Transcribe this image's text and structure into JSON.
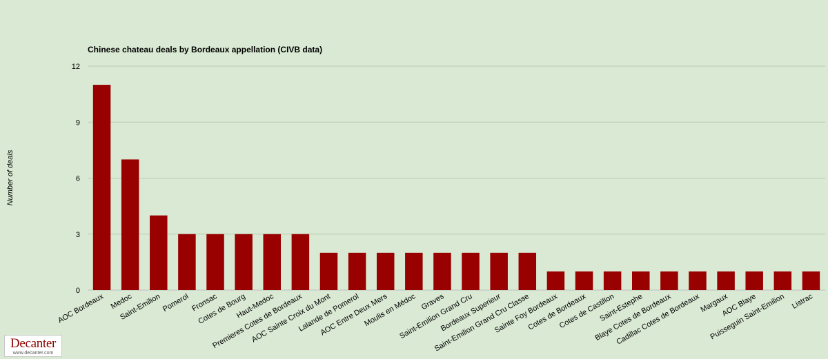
{
  "colors": {
    "background": "#d9e9d3",
    "bar": "#990000",
    "grid": "#b9cdb3",
    "axis": "#bfbfbf",
    "text": "#000000"
  },
  "chart_data": {
    "type": "bar",
    "title": "Chinese chateau deals by Bordeaux appellation (CIVB data)",
    "xlabel": "",
    "ylabel": "Number of deals",
    "ylim": [
      0,
      12
    ],
    "yticks": [
      0,
      3,
      6,
      9,
      12
    ],
    "grid": true,
    "legend": "none",
    "categories": [
      "AOC Bordeaux",
      "Medoc",
      "Saint-Emilion",
      "Pomerol",
      "Fronsac",
      "Cotes de Bourg",
      "Haut-Medoc",
      "Premieres Cotes de Bordeaux",
      "AOC Sainte Croix du Mont",
      "Lalande de Pomerol",
      "AOC Entre Deux Mers",
      "Moulis en Médoc",
      "Graves",
      "Saint-Emilion Grand Cru",
      "Bordeaux Superieur",
      "Saint-Emilion Grand Cru Classe",
      "Sainte Foy Bordeaux",
      "Cotes de Bordeaux",
      "Cotes de Castillon",
      "Saint-Estephe",
      "Blaye Cotes de Bordeaux",
      "Cadillac Cotes de Bordeaux",
      "Margaux",
      "AOC Blaye",
      "Puisseguin Saint-Emilion",
      "Listrac"
    ],
    "values": [
      11,
      7,
      4,
      3,
      3,
      3,
      3,
      3,
      2,
      2,
      2,
      2,
      2,
      2,
      2,
      2,
      1,
      1,
      1,
      1,
      1,
      1,
      1,
      1,
      1,
      1
    ]
  },
  "logo": {
    "name": "Decanter",
    "url": "www.decanter.com"
  }
}
